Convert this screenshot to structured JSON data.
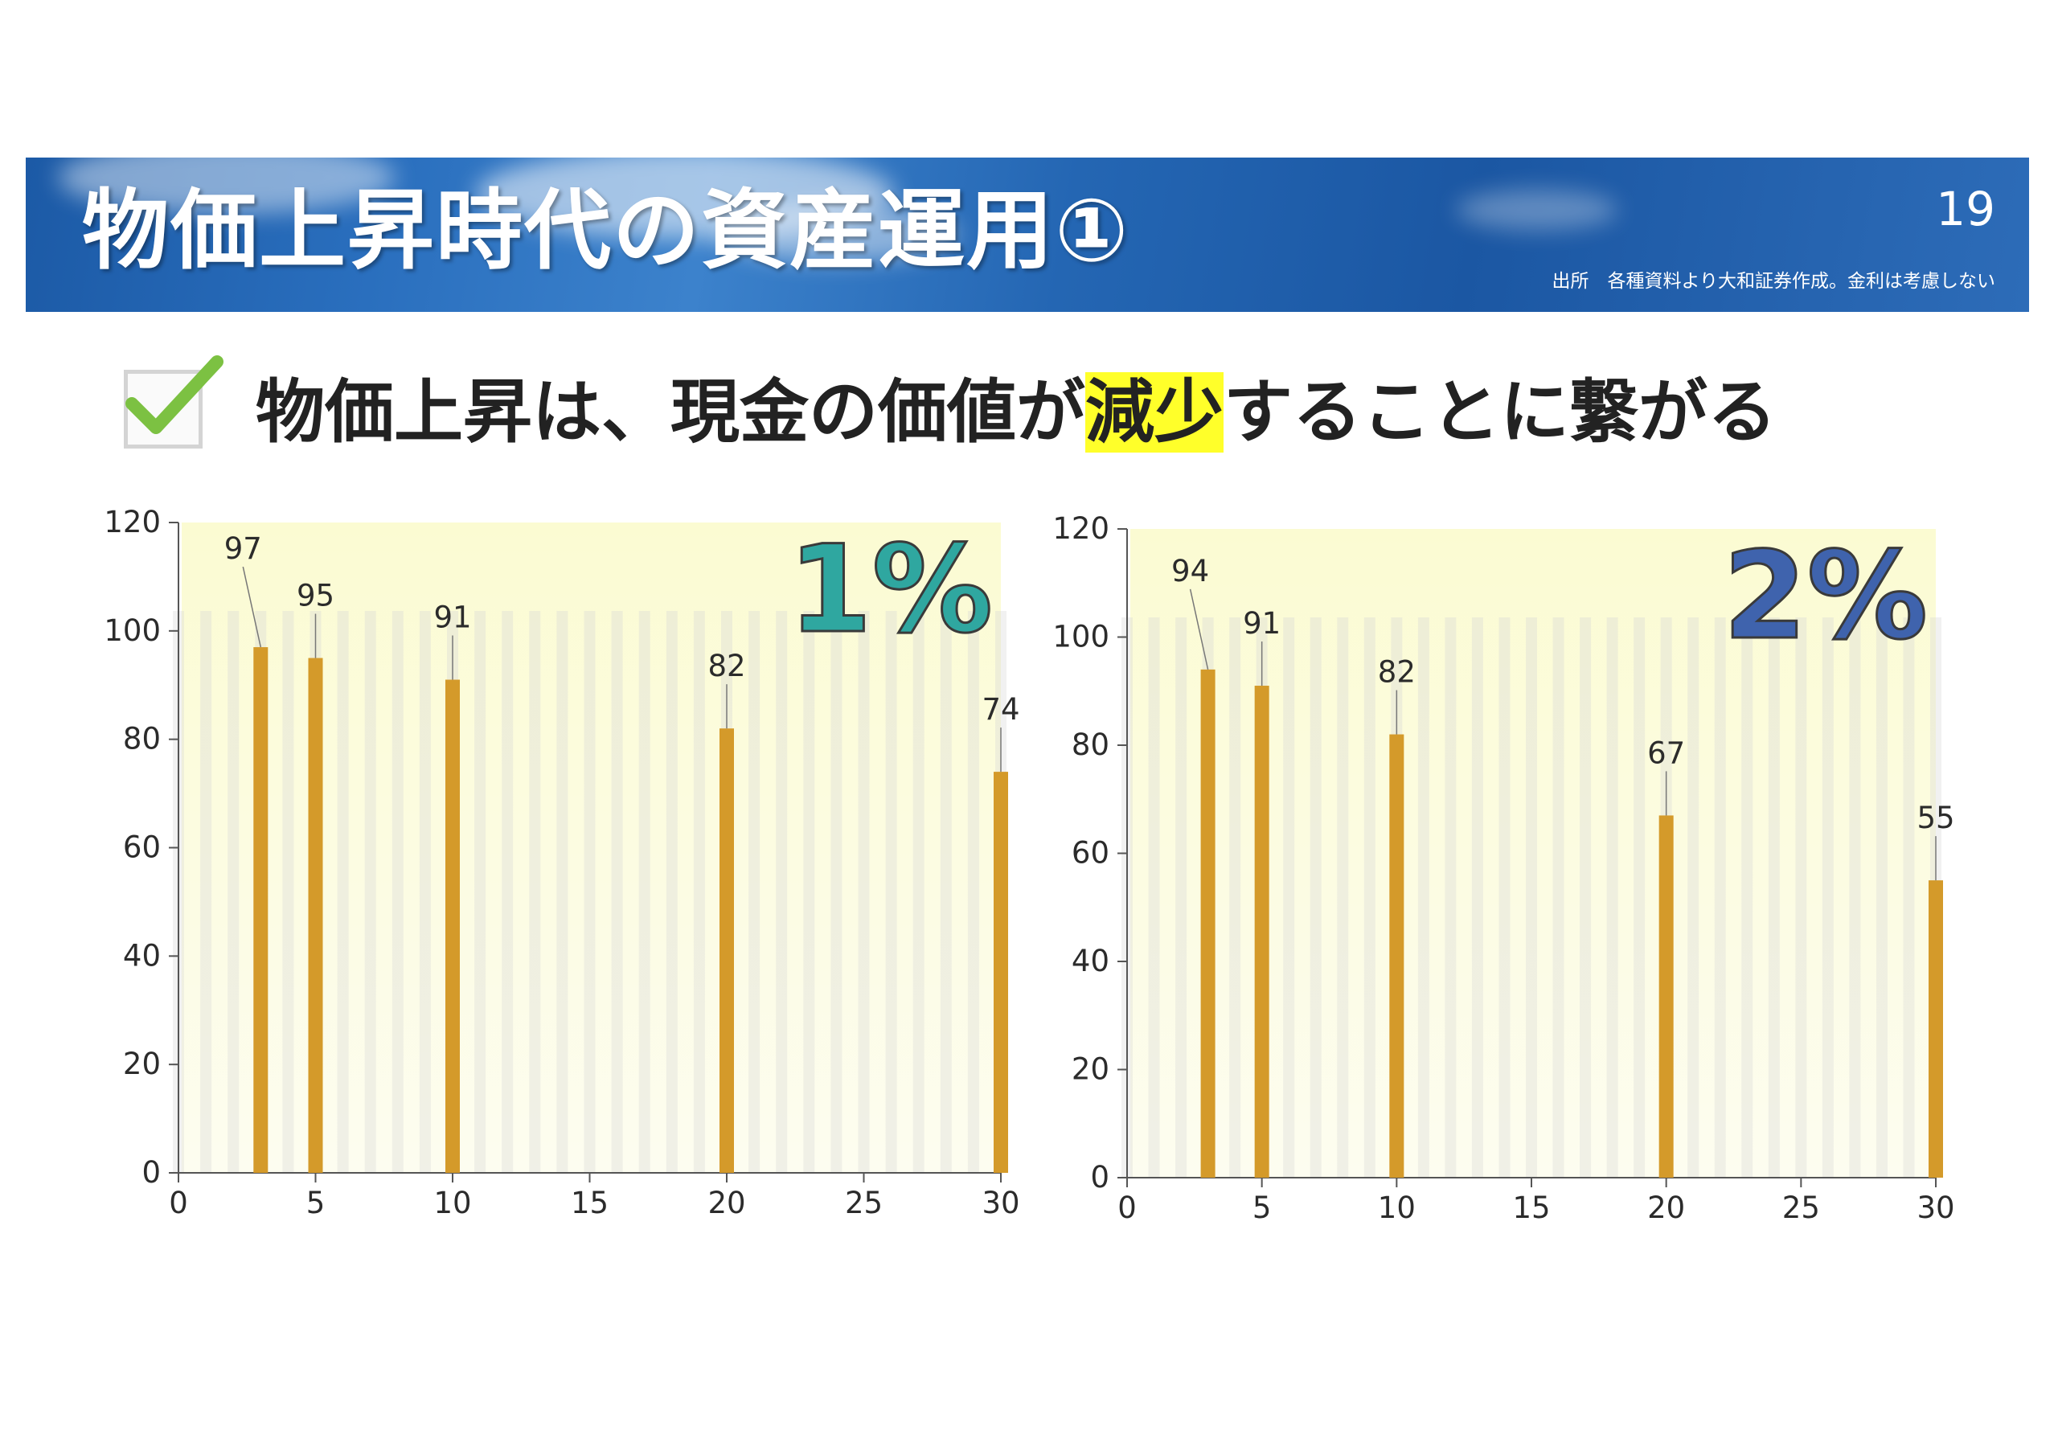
{
  "header": {
    "title": "物価上昇時代の資産運用①",
    "page_number": "19",
    "source_note": "出所　各種資料より大和証券作成。金利は考慮しない"
  },
  "subtitle": {
    "before": "物価上昇は、現金の価値が",
    "highlight": "減少",
    "after": "することに繋がる"
  },
  "colors": {
    "banner": "#1c5aa6",
    "bar": "#d49a2a",
    "plot_bg": "#fdfde4",
    "highlight": "#ffff2a",
    "check": "#7cc142",
    "label_1pct": "#2fa7a0",
    "label_2pct": "#3f63ad"
  },
  "chart_data": [
    {
      "type": "bar",
      "label": "1%",
      "x": [
        3,
        5,
        10,
        20,
        30
      ],
      "values": [
        97,
        95,
        91,
        82,
        74
      ],
      "data_labels": [
        "97",
        "95",
        "91",
        "82",
        "74"
      ],
      "xlim": [
        0,
        30
      ],
      "ylim": [
        0,
        120
      ],
      "xticks": [
        "0",
        "5",
        "10",
        "15",
        "20",
        "25",
        "30"
      ],
      "yticks": [
        "0",
        "20",
        "40",
        "60",
        "80",
        "100",
        "120"
      ],
      "grid": false,
      "xlabel": "",
      "ylabel": ""
    },
    {
      "type": "bar",
      "label": "2%",
      "x": [
        3,
        5,
        10,
        20,
        30
      ],
      "values": [
        94,
        91,
        82,
        67,
        55
      ],
      "data_labels": [
        "94",
        "91",
        "82",
        "67",
        "55"
      ],
      "xlim": [
        0,
        30
      ],
      "ylim": [
        0,
        120
      ],
      "xticks": [
        "0",
        "5",
        "10",
        "15",
        "20",
        "25",
        "30"
      ],
      "yticks": [
        "0",
        "20",
        "40",
        "60",
        "80",
        "100",
        "120"
      ],
      "grid": false,
      "xlabel": "",
      "ylabel": ""
    }
  ]
}
